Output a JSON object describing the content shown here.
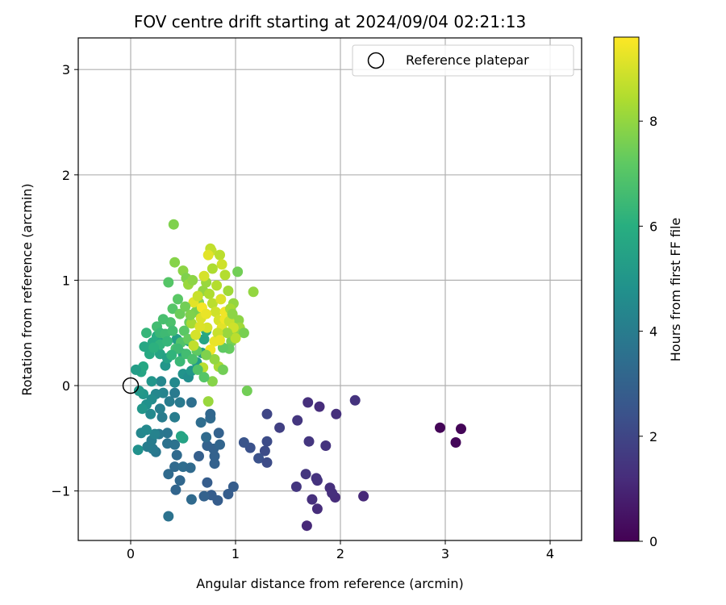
{
  "chart_data": {
    "type": "scatter",
    "title": "FOV centre drift starting at 2024/09/04 02:21:13",
    "xlabel": "Angular distance from reference (arcmin)",
    "ylabel": "Rotation from reference (arcmin)",
    "xlim": [
      -0.5,
      4.3
    ],
    "ylim": [
      -1.47,
      3.3
    ],
    "xticks": [
      "0",
      "1",
      "2",
      "3",
      "4"
    ],
    "yticks": [
      "−1",
      "0",
      "1",
      "2",
      "3"
    ],
    "grid": true,
    "legend": {
      "position": "top-right",
      "entries": [
        "Reference platepar"
      ]
    },
    "reference_point": {
      "x": 0,
      "y": 0,
      "label": "Reference platepar"
    },
    "colorbar": {
      "label": "Hours from first FF file",
      "range": [
        0,
        9.6
      ],
      "ticks": [
        "0",
        "2",
        "4",
        "6",
        "8"
      ],
      "colormap": "viridis"
    },
    "series": [
      {
        "points": [
          [
            2.95,
            -0.4,
            0.1
          ],
          [
            3.15,
            -0.41,
            0.1
          ],
          [
            3.1,
            -0.54,
            0.15
          ],
          [
            1.68,
            -1.33,
            1.1
          ],
          [
            1.78,
            -1.17,
            1.2
          ],
          [
            1.73,
            -1.08,
            1.3
          ],
          [
            1.95,
            -1.06,
            1.2
          ],
          [
            2.22,
            -1.05,
            1.1
          ],
          [
            1.9,
            -0.97,
            1.3
          ],
          [
            1.92,
            -1.02,
            1.3
          ],
          [
            1.58,
            -0.96,
            1.5
          ],
          [
            1.67,
            -0.84,
            1.5
          ],
          [
            1.77,
            -0.88,
            1.4
          ],
          [
            1.78,
            -0.9,
            1.4
          ],
          [
            1.86,
            -0.57,
            1.4
          ],
          [
            1.7,
            -0.53,
            1.5
          ],
          [
            1.59,
            -0.33,
            1.5
          ],
          [
            1.69,
            -0.16,
            1.3
          ],
          [
            1.8,
            -0.2,
            1.2
          ],
          [
            1.96,
            -0.27,
            1.3
          ],
          [
            2.14,
            -0.14,
            1.4
          ],
          [
            1.42,
            -0.4,
            1.8
          ],
          [
            1.3,
            -0.27,
            2.0
          ],
          [
            1.3,
            -0.53,
            2.2
          ],
          [
            1.28,
            -0.62,
            2.2
          ],
          [
            1.22,
            -0.69,
            2.4
          ],
          [
            1.3,
            -0.73,
            2.2
          ],
          [
            1.14,
            -0.59,
            2.4
          ],
          [
            1.08,
            -0.54,
            2.5
          ],
          [
            0.98,
            -0.96,
            2.8
          ],
          [
            0.93,
            -1.03,
            2.8
          ],
          [
            0.83,
            -1.09,
            2.8
          ],
          [
            0.77,
            -1.04,
            2.8
          ],
          [
            0.7,
            -1.05,
            3.0
          ],
          [
            0.58,
            -1.08,
            3.3
          ],
          [
            0.36,
            -1.24,
            3.6
          ],
          [
            0.43,
            -0.99,
            3.1
          ],
          [
            0.47,
            -0.9,
            3.2
          ],
          [
            0.36,
            -0.84,
            3.3
          ],
          [
            0.42,
            -0.77,
            3.3
          ],
          [
            0.5,
            -0.77,
            3.4
          ],
          [
            0.57,
            -0.78,
            3.3
          ],
          [
            0.65,
            -0.67,
            2.9
          ],
          [
            0.73,
            -0.92,
            2.8
          ],
          [
            0.8,
            -0.74,
            3.0
          ],
          [
            0.8,
            -0.67,
            3.0
          ],
          [
            0.73,
            -0.57,
            3.0
          ],
          [
            0.79,
            -0.6,
            3.0
          ],
          [
            0.85,
            -0.56,
            3.1
          ],
          [
            0.84,
            -0.45,
            3.0
          ],
          [
            0.72,
            -0.49,
            3.3
          ],
          [
            0.76,
            -0.31,
            3.3
          ],
          [
            0.76,
            -0.27,
            3.2
          ],
          [
            0.67,
            -0.35,
            3.4
          ],
          [
            0.58,
            -0.16,
            3.5
          ],
          [
            0.44,
            -0.66,
            3.3
          ],
          [
            0.42,
            -0.56,
            3.6
          ],
          [
            0.35,
            -0.55,
            3.6
          ],
          [
            0.35,
            -0.45,
            3.7
          ],
          [
            0.27,
            -0.46,
            3.8
          ],
          [
            0.24,
            -0.63,
            3.8
          ],
          [
            0.21,
            -0.6,
            3.9
          ],
          [
            0.16,
            -0.58,
            4.0
          ],
          [
            0.2,
            -0.52,
            4.0
          ],
          [
            0.23,
            -0.46,
            4.2
          ],
          [
            0.1,
            -0.45,
            4.4
          ],
          [
            0.15,
            -0.42,
            4.5
          ],
          [
            0.07,
            -0.61,
            4.8
          ],
          [
            0.3,
            -0.3,
            4.0
          ],
          [
            0.28,
            -0.22,
            4.1
          ],
          [
            0.37,
            -0.15,
            4.0
          ],
          [
            0.31,
            -0.07,
            4.3
          ],
          [
            0.29,
            0.04,
            4.4
          ],
          [
            0.24,
            -0.08,
            4.4
          ],
          [
            0.2,
            -0.13,
            4.6
          ],
          [
            0.15,
            -0.18,
            4.8
          ],
          [
            0.11,
            -0.22,
            5.0
          ],
          [
            0.19,
            -0.27,
            4.5
          ],
          [
            0.12,
            -0.08,
            5.0
          ],
          [
            0.08,
            -0.05,
            5.1
          ],
          [
            0.2,
            0.04,
            5.0
          ],
          [
            0.42,
            -0.07,
            3.9
          ],
          [
            0.47,
            -0.16,
            3.9
          ],
          [
            0.42,
            -0.3,
            4.0
          ],
          [
            0.42,
            0.03,
            4.5
          ],
          [
            0.1,
            0.13,
            5.6
          ],
          [
            0.12,
            0.18,
            5.7
          ],
          [
            0.28,
            0.3,
            5.6
          ],
          [
            0.33,
            0.19,
            5.0
          ],
          [
            0.21,
            0.41,
            5.8
          ],
          [
            0.25,
            0.47,
            5.9
          ],
          [
            0.3,
            0.42,
            5.5
          ],
          [
            0.18,
            0.3,
            5.8
          ],
          [
            0.13,
            0.37,
            5.7
          ],
          [
            0.44,
            0.44,
            5.3
          ],
          [
            0.5,
            0.3,
            5.2
          ],
          [
            0.5,
            0.11,
            4.9
          ],
          [
            0.55,
            0.08,
            4.7
          ],
          [
            0.58,
            0.14,
            5.0
          ],
          [
            0.63,
            0.22,
            5.2
          ],
          [
            0.68,
            0.31,
            5.3
          ],
          [
            0.7,
            0.44,
            5.6
          ],
          [
            0.72,
            0.52,
            5.8
          ],
          [
            0.56,
            0.42,
            5.6
          ],
          [
            0.5,
            -0.5,
            5.5
          ],
          [
            0.48,
            -0.48,
            5.6
          ],
          [
            0.05,
            0.15,
            5.3
          ],
          [
            0.35,
            0.26,
            5.4
          ],
          [
            0.36,
            0.98,
            7.0
          ],
          [
            0.41,
            1.53,
            7.7
          ],
          [
            0.42,
            1.17,
            7.8
          ],
          [
            0.5,
            1.09,
            7.9
          ],
          [
            0.53,
            1.02,
            7.7
          ],
          [
            0.45,
            0.82,
            7.1
          ],
          [
            0.4,
            0.73,
            7.0
          ],
          [
            0.38,
            0.6,
            6.8
          ],
          [
            0.31,
            0.63,
            6.7
          ],
          [
            0.25,
            0.56,
            6.6
          ],
          [
            0.15,
            0.5,
            6.3
          ],
          [
            0.28,
            0.5,
            6.4
          ],
          [
            0.43,
            0.35,
            6.7
          ],
          [
            0.48,
            0.41,
            6.9
          ],
          [
            0.51,
            0.52,
            7.1
          ],
          [
            0.56,
            0.6,
            7.4
          ],
          [
            0.62,
            0.7,
            7.6
          ],
          [
            0.65,
            0.79,
            7.8
          ],
          [
            0.69,
            0.9,
            8.0
          ],
          [
            0.72,
            0.98,
            8.1
          ],
          [
            0.75,
            0.87,
            8.4
          ],
          [
            0.78,
            0.78,
            8.6
          ],
          [
            0.81,
            0.7,
            8.9
          ],
          [
            0.84,
            0.62,
            9.0
          ],
          [
            0.87,
            0.55,
            9.2
          ],
          [
            0.9,
            0.63,
            9.4
          ],
          [
            0.8,
            0.42,
            9.3
          ],
          [
            0.73,
            0.55,
            9.0
          ],
          [
            0.67,
            0.64,
            9.1
          ],
          [
            0.6,
            0.79,
            9.2
          ],
          [
            0.77,
            1.28,
            8.8
          ],
          [
            0.76,
            1.3,
            8.7
          ],
          [
            0.85,
            1.24,
            8.6
          ],
          [
            0.87,
            1.15,
            8.9
          ],
          [
            0.9,
            1.05,
            8.5
          ],
          [
            0.93,
            0.9,
            8.2
          ],
          [
            0.98,
            0.78,
            8.0
          ],
          [
            1.02,
            1.08,
            7.5
          ],
          [
            1.03,
            0.62,
            7.9
          ],
          [
            1.04,
            0.55,
            8.2
          ],
          [
            1.0,
            0.5,
            8.0
          ],
          [
            0.96,
            0.42,
            7.6
          ],
          [
            0.94,
            0.35,
            7.3
          ],
          [
            1.08,
            0.5,
            7.6
          ],
          [
            1.17,
            0.89,
            8.0
          ],
          [
            1.11,
            -0.05,
            7.5
          ],
          [
            0.74,
            -0.15,
            8.1
          ],
          [
            0.78,
            0.04,
            7.8
          ],
          [
            0.84,
            0.18,
            8.3
          ],
          [
            0.88,
            0.15,
            7.5
          ],
          [
            0.69,
            0.17,
            8.6
          ],
          [
            0.63,
            0.33,
            7.2
          ],
          [
            0.55,
            0.44,
            7.3
          ],
          [
            0.45,
            0.35,
            6.5
          ],
          [
            0.58,
            0.59,
            8.3
          ],
          [
            0.64,
            0.85,
            8.8
          ],
          [
            0.7,
            1.04,
            9.0
          ],
          [
            0.74,
            1.24,
            9.2
          ],
          [
            0.78,
            1.11,
            8.4
          ],
          [
            0.82,
            0.95,
            8.5
          ],
          [
            0.86,
            0.82,
            9.1
          ],
          [
            0.9,
            0.7,
            9.4
          ],
          [
            0.94,
            0.61,
            8.8
          ],
          [
            0.98,
            0.55,
            8.9
          ],
          [
            1.0,
            0.45,
            8.6
          ],
          [
            0.68,
            0.74,
            9.5
          ],
          [
            0.72,
            0.68,
            9.3
          ],
          [
            0.66,
            0.56,
            9.1
          ],
          [
            0.62,
            0.48,
            9.0
          ],
          [
            0.6,
            0.38,
            8.7
          ],
          [
            0.76,
            0.34,
            9.4
          ],
          [
            0.8,
            0.25,
            8.0
          ],
          [
            0.72,
            0.29,
            7.7
          ],
          [
            0.88,
            0.36,
            7.2
          ],
          [
            0.92,
            0.5,
            8.1
          ],
          [
            0.55,
            0.96,
            8.1
          ],
          [
            0.59,
            1.0,
            7.9
          ],
          [
            0.47,
            0.68,
            7.4
          ],
          [
            0.52,
            0.75,
            7.5
          ],
          [
            0.57,
            0.67,
            7.7
          ],
          [
            0.33,
            0.49,
            6.5
          ],
          [
            0.28,
            0.39,
            6.2
          ],
          [
            0.22,
            0.36,
            6.1
          ],
          [
            0.4,
            0.52,
            6.6
          ],
          [
            0.35,
            0.42,
            6.3
          ],
          [
            0.39,
            0.29,
            6.2
          ],
          [
            0.47,
            0.23,
            6.4
          ],
          [
            0.53,
            0.3,
            6.6
          ],
          [
            0.59,
            0.25,
            6.8
          ],
          [
            0.64,
            0.15,
            6.9
          ],
          [
            0.7,
            0.08,
            7.0
          ],
          [
            0.83,
            0.5,
            8.8
          ],
          [
            0.85,
            0.43,
            9.3
          ],
          [
            0.95,
            0.73,
            8.3
          ],
          [
            0.97,
            0.68,
            7.9
          ]
        ]
      }
    ]
  }
}
